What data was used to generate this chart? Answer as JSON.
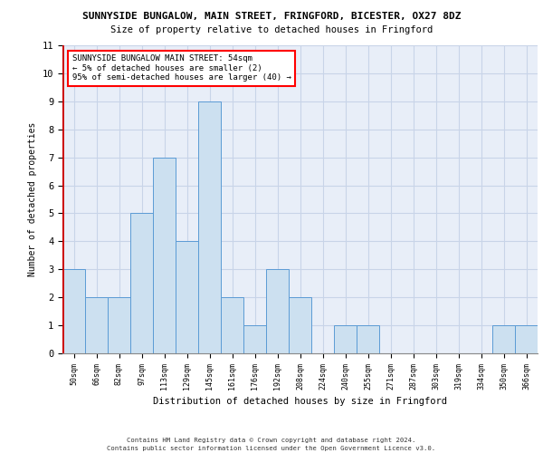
{
  "title1": "SUNNYSIDE BUNGALOW, MAIN STREET, FRINGFORD, BICESTER, OX27 8DZ",
  "title2": "Size of property relative to detached houses in Fringford",
  "xlabel": "Distribution of detached houses by size in Fringford",
  "ylabel": "Number of detached properties",
  "categories": [
    "50sqm",
    "66sqm",
    "82sqm",
    "97sqm",
    "113sqm",
    "129sqm",
    "145sqm",
    "161sqm",
    "176sqm",
    "192sqm",
    "208sqm",
    "224sqm",
    "240sqm",
    "255sqm",
    "271sqm",
    "287sqm",
    "303sqm",
    "319sqm",
    "334sqm",
    "350sqm",
    "366sqm"
  ],
  "values": [
    3,
    2,
    2,
    5,
    7,
    4,
    9,
    2,
    1,
    3,
    2,
    0,
    1,
    1,
    0,
    0,
    0,
    0,
    0,
    1,
    1
  ],
  "bar_color": "#cce0f0",
  "bar_edge_color": "#5b9bd5",
  "annotation_text": "SUNNYSIDE BUNGALOW MAIN STREET: 54sqm\n← 5% of detached houses are smaller (2)\n95% of semi-detached houses are larger (40) →",
  "ylim": [
    0,
    11
  ],
  "yticks": [
    0,
    1,
    2,
    3,
    4,
    5,
    6,
    7,
    8,
    9,
    10,
    11
  ],
  "grid_color": "#c8d4e8",
  "background_color": "#e8eef8",
  "footer1": "Contains HM Land Registry data © Crown copyright and database right 2024.",
  "footer2": "Contains public sector information licensed under the Open Government Licence v3.0.",
  "marker_line_color": "#cc0000"
}
